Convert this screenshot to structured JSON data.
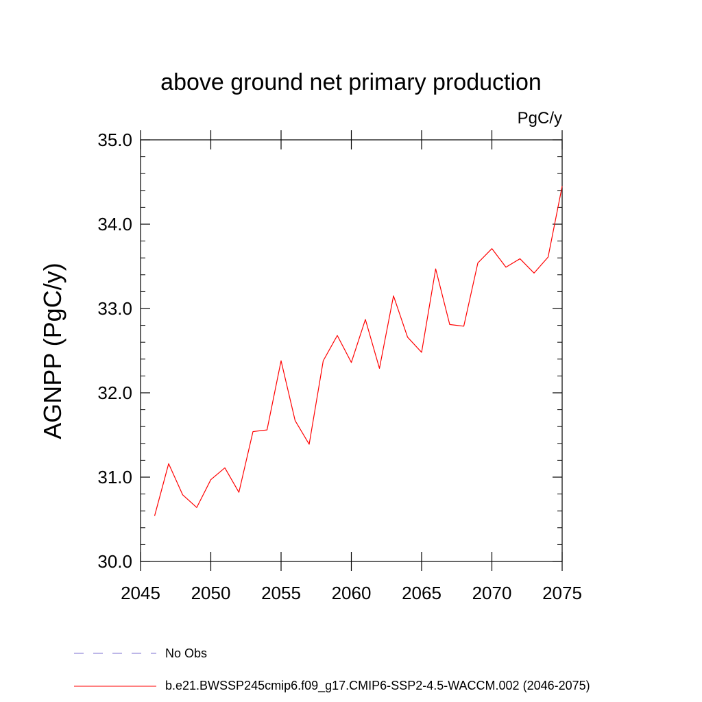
{
  "chart_data": {
    "type": "line",
    "title": "above ground net primary production",
    "units_label": "PgC/y",
    "ylabel": "AGNPP  (PgC/y)",
    "xlabel": "",
    "xlim": [
      2045,
      2075
    ],
    "ylim": [
      30.0,
      35.0
    ],
    "x_ticks": [
      "2045",
      "2050",
      "2055",
      "2060",
      "2065",
      "2070",
      "2075"
    ],
    "y_ticks": [
      "30.0",
      "31.0",
      "32.0",
      "33.0",
      "34.0",
      "35.0"
    ],
    "grid": false,
    "series": [
      {
        "name": "b.e21.BWSSP245cmip6.f09_g17.CMIP6-SSP2-4.5-WACCM.002 (2046-2075)",
        "color": "#ff0000",
        "x": [
          2046,
          2047,
          2048,
          2049,
          2050,
          2051,
          2052,
          2053,
          2054,
          2055,
          2056,
          2057,
          2058,
          2059,
          2060,
          2061,
          2062,
          2063,
          2064,
          2065,
          2066,
          2067,
          2068,
          2069,
          2070,
          2071,
          2072,
          2073,
          2074,
          2075
        ],
        "y": [
          30.54,
          31.16,
          30.79,
          30.64,
          30.97,
          31.11,
          30.82,
          31.54,
          31.56,
          32.38,
          31.67,
          31.39,
          32.38,
          32.68,
          32.36,
          32.87,
          32.29,
          33.15,
          32.66,
          32.48,
          33.47,
          32.81,
          32.79,
          33.54,
          33.71,
          33.49,
          33.59,
          33.42,
          33.61,
          34.45
        ]
      }
    ],
    "legend": {
      "placement": "bottom-left",
      "entries": [
        {
          "label": "No Obs",
          "color": "#7b6fd0",
          "style": "dashed"
        },
        {
          "label": "b.e21.BWSSP245cmip6.f09_g17.CMIP6-SSP2-4.5-WACCM.002 (2046-2075)",
          "color": "#ff0000",
          "style": "solid"
        }
      ]
    }
  }
}
